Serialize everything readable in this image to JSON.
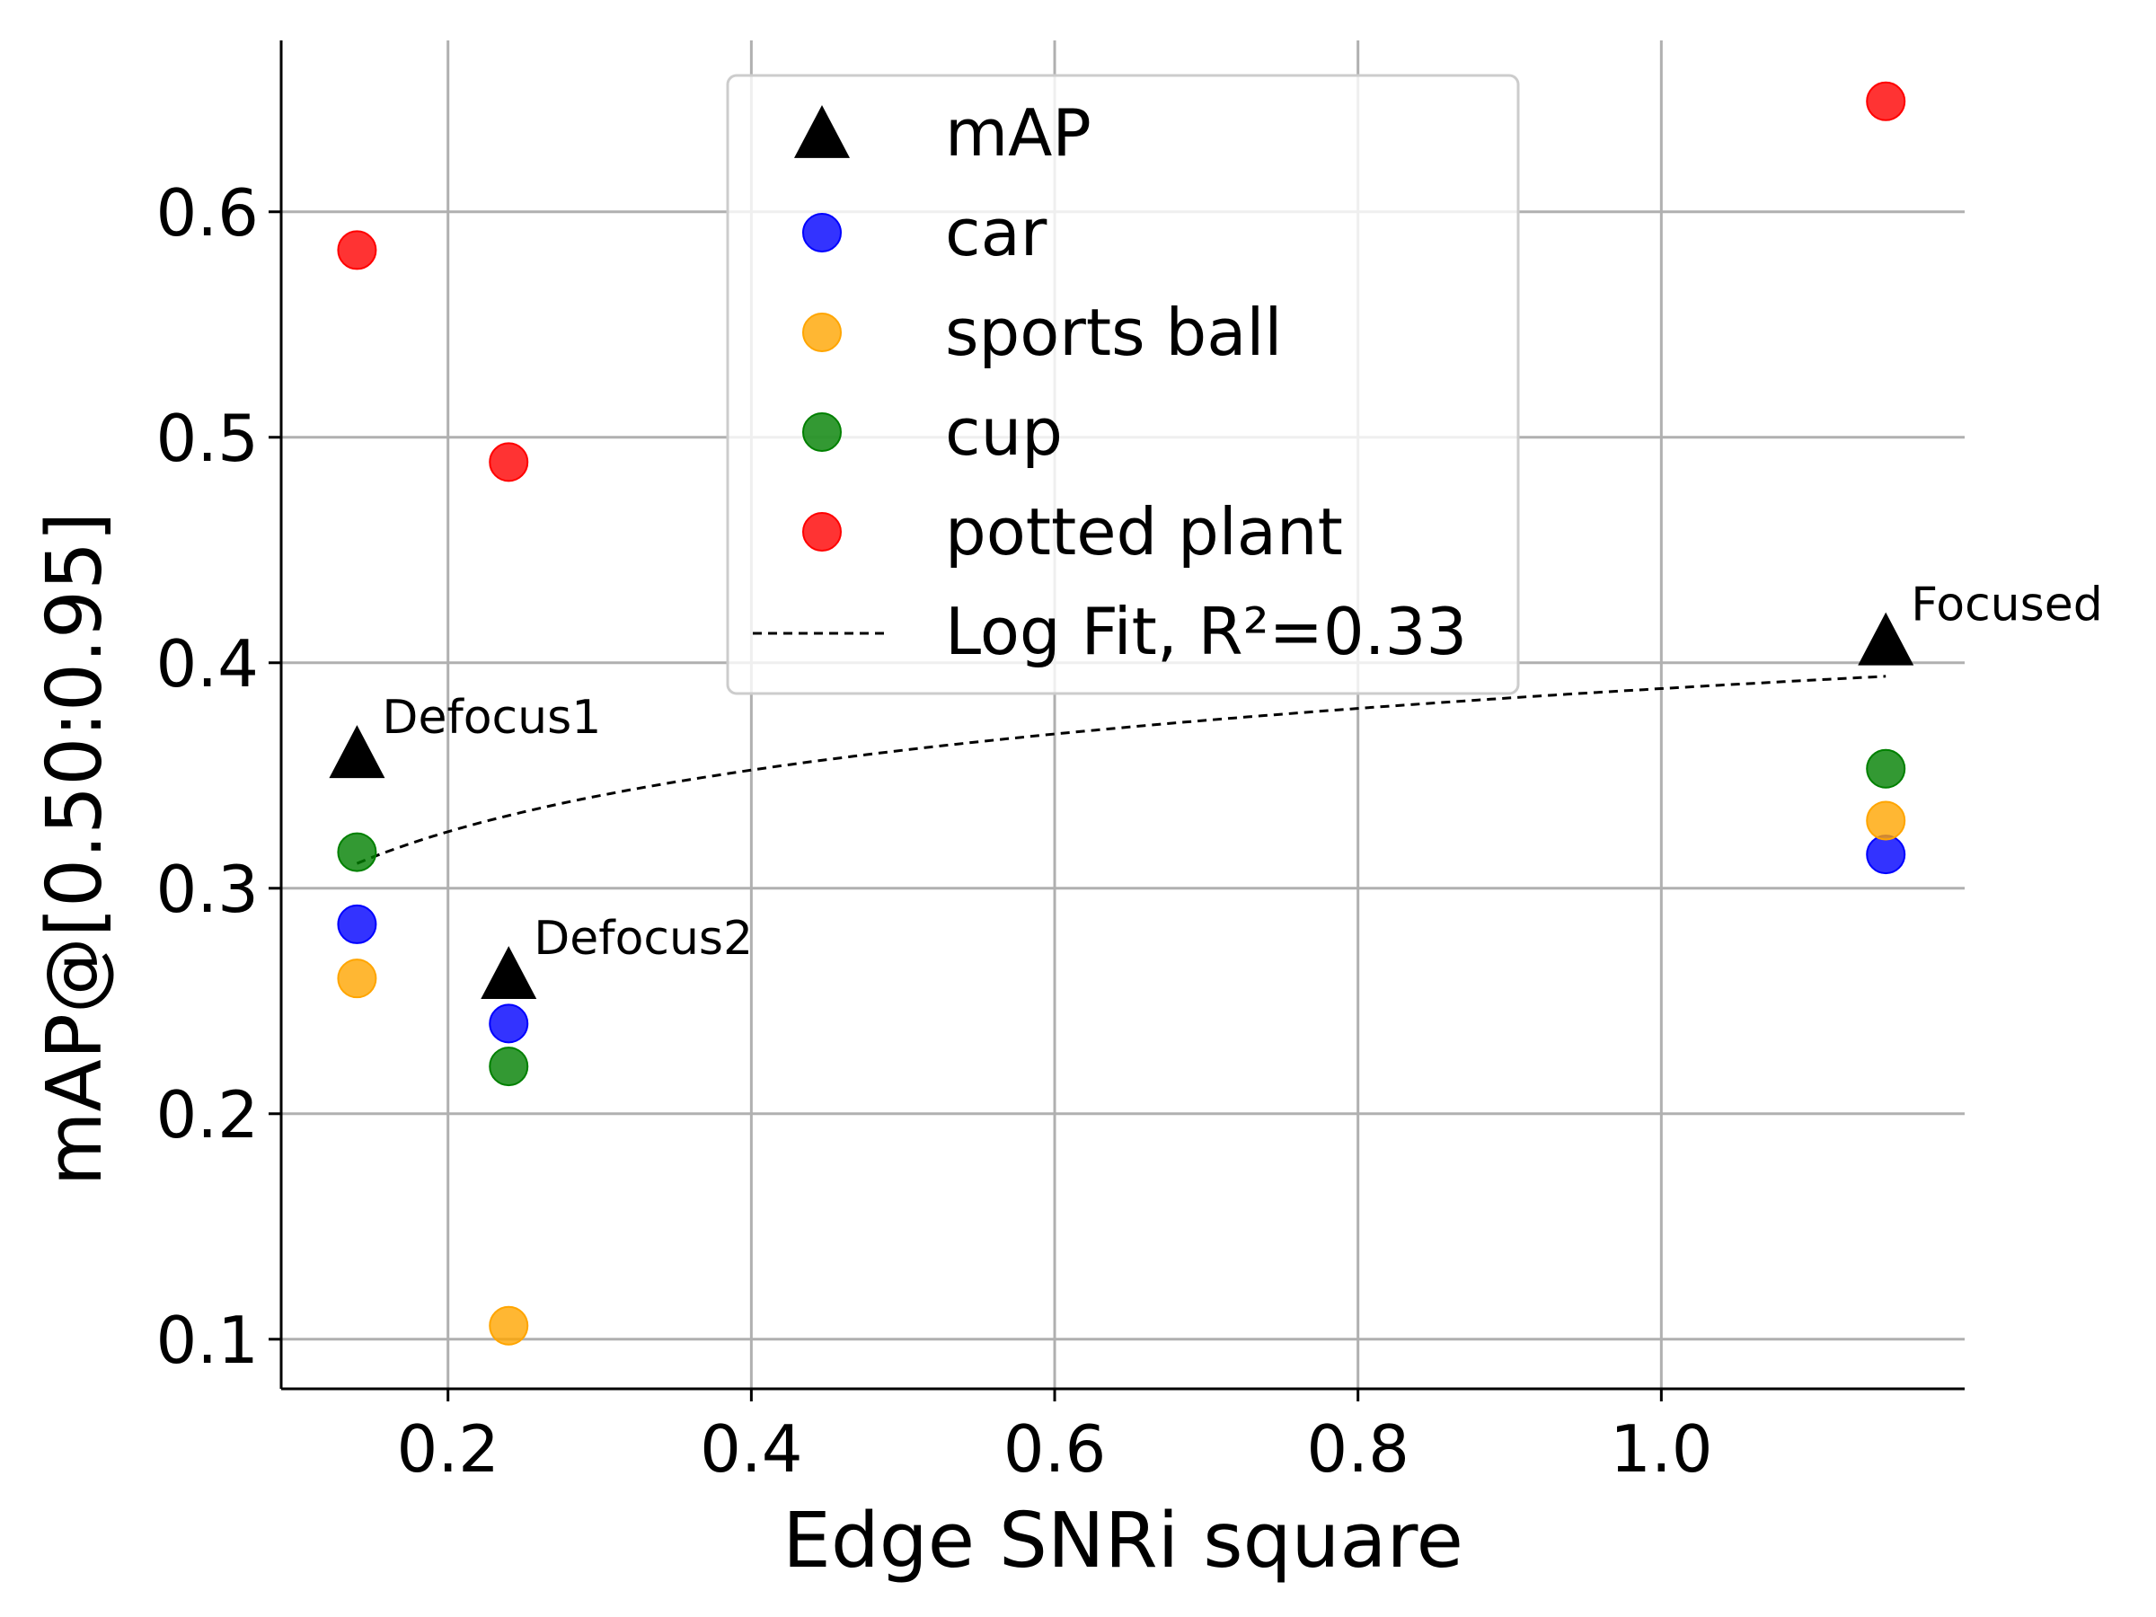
{
  "chart_data": {
    "type": "scatter",
    "xlabel": "Edge SNRi square",
    "ylabel": "mAP@[0.50:0.95]",
    "xlim": [
      0.09,
      1.2
    ],
    "ylim": [
      0.078,
      0.676
    ],
    "xticks": [
      0.2,
      0.4,
      0.6,
      0.8,
      1.0
    ],
    "xtick_labels": [
      "0.2",
      "0.4",
      "0.6",
      "0.8",
      "1.0"
    ],
    "yticks": [
      0.1,
      0.2,
      0.3,
      0.4,
      0.5,
      0.6
    ],
    "ytick_labels": [
      "0.1",
      "0.2",
      "0.3",
      "0.4",
      "0.5",
      "0.6"
    ],
    "grid": true,
    "legend_position": "top-center",
    "series": [
      {
        "name": "mAP",
        "marker": "triangle",
        "color": "#000000",
        "points": [
          [
            0.14,
            0.36
          ],
          [
            0.24,
            0.262
          ],
          [
            1.148,
            0.41
          ]
        ]
      },
      {
        "name": "car",
        "marker": "circle",
        "color": "#0000ff",
        "points": [
          [
            0.14,
            0.284
          ],
          [
            0.24,
            0.24
          ],
          [
            1.148,
            0.315
          ]
        ]
      },
      {
        "name": "sports ball",
        "marker": "circle",
        "color": "#ffa500",
        "points": [
          [
            0.14,
            0.26
          ],
          [
            0.24,
            0.106
          ],
          [
            1.148,
            0.33
          ]
        ]
      },
      {
        "name": "cup",
        "marker": "circle",
        "color": "#008000",
        "points": [
          [
            0.14,
            0.316
          ],
          [
            0.24,
            0.221
          ],
          [
            1.148,
            0.353
          ]
        ]
      },
      {
        "name": "potted plant",
        "marker": "circle",
        "color": "#ff0000",
        "points": [
          [
            0.14,
            0.583
          ],
          [
            0.24,
            0.489
          ],
          [
            1.148,
            0.649
          ]
        ]
      }
    ],
    "fit": {
      "name": "Log Fit, R²=0.33",
      "style": "dashed",
      "color": "#000000",
      "x_range": [
        0.14,
        1.148
      ],
      "y_at_start": 0.311,
      "y_at_end": 0.394
    },
    "annotations": [
      {
        "text": "Defocus1",
        "x": 0.14,
        "y": 0.36
      },
      {
        "text": "Defocus2",
        "x": 0.24,
        "y": 0.262
      },
      {
        "text": "Focused",
        "x": 1.148,
        "y": 0.41
      }
    ]
  }
}
